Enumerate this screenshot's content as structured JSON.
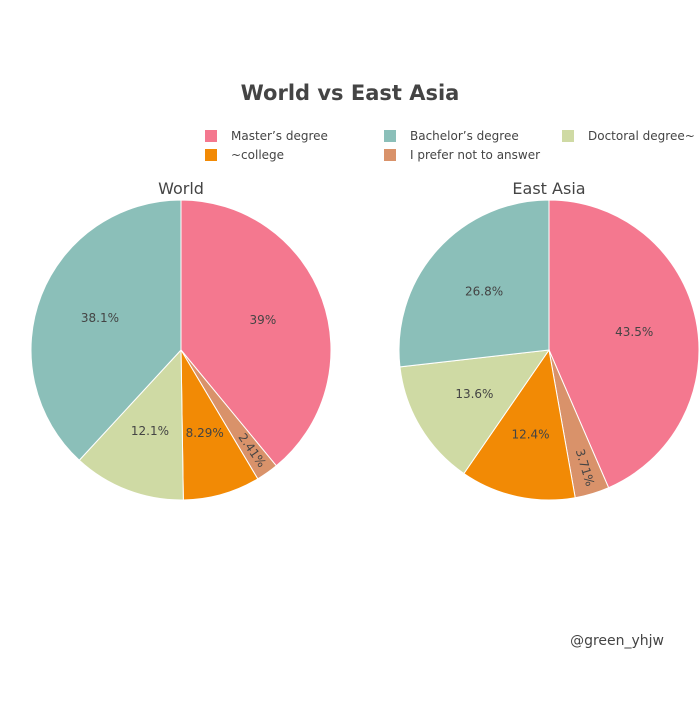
{
  "chart_data": {
    "type": "pie",
    "title": "World vs East Asia",
    "legend": {
      "placement": "top",
      "entries": [
        {
          "label": "Master’s degree",
          "color": "#f4788f"
        },
        {
          "label": "Bachelor’s degree",
          "color": "#8bbfb9"
        },
        {
          "label": "Doctoral degree~",
          "color": "#cfdaa4"
        },
        {
          "label": "~college",
          "color": "#f28a05"
        },
        {
          "label": "I prefer not to answer",
          "color": "#d9926a"
        }
      ]
    },
    "charts": [
      {
        "subtitle": "World",
        "slices": [
          {
            "label": "Master’s degree",
            "value": 39.0,
            "text": "39%"
          },
          {
            "label": "I prefer not to answer",
            "value": 2.41,
            "text": "2.41%"
          },
          {
            "label": "~college",
            "value": 8.29,
            "text": "8.29%"
          },
          {
            "label": "Doctoral degree~",
            "value": 12.1,
            "text": "12.1%"
          },
          {
            "label": "Bachelor’s degree",
            "value": 38.1,
            "text": "38.1%"
          }
        ]
      },
      {
        "subtitle": "East Asia",
        "slices": [
          {
            "label": "Master’s degree",
            "value": 43.5,
            "text": "43.5%"
          },
          {
            "label": "I prefer not to answer",
            "value": 3.71,
            "text": "3.71%"
          },
          {
            "label": "~college",
            "value": 12.4,
            "text": "12.4%"
          },
          {
            "label": "Doctoral degree~",
            "value": 13.6,
            "text": "13.6%"
          },
          {
            "label": "Bachelor’s degree",
            "value": 26.8,
            "text": "26.8%"
          }
        ]
      }
    ]
  },
  "credit": "@green_yhjw"
}
